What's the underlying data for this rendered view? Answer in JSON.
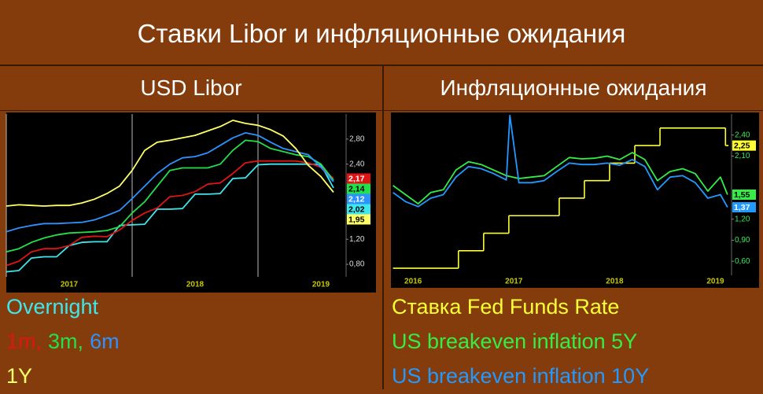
{
  "title": "Ставки Libor и инфляционные ожидания",
  "headings": [
    "USD Libor",
    "Инфляционные ожидания"
  ],
  "chart_data": [
    {
      "type": "line",
      "x": [
        2017.0,
        2017.1,
        2017.2,
        2017.3,
        2017.4,
        2017.5,
        2017.6,
        2017.7,
        2017.8,
        2017.9,
        2018.0,
        2018.1,
        2018.2,
        2018.3,
        2018.4,
        2018.5,
        2018.6,
        2018.7,
        2018.8,
        2018.9,
        2019.0,
        2019.1,
        2019.2,
        2019.3,
        2019.4,
        2019.5,
        2019.6
      ],
      "xlim": [
        2017.0,
        2019.7
      ],
      "xticks": [
        2017,
        2018,
        2019
      ],
      "ylim": [
        0.6,
        3.2
      ],
      "yticks": [
        {
          "value": 0.8,
          "label": "0,80"
        },
        {
          "value": 1.2,
          "label": "1,20"
        },
        {
          "value": 2.4,
          "label": "2,40"
        },
        {
          "value": 2.8,
          "label": "2,80"
        }
      ],
      "grid": true,
      "tick_color": "#dddddd",
      "series": [
        {
          "name": "Overnight",
          "color": "#3ee6ee",
          "end_label": "2,02",
          "values": [
            0.68,
            0.7,
            0.9,
            0.92,
            0.92,
            1.1,
            1.15,
            1.16,
            1.16,
            1.42,
            1.43,
            1.44,
            1.68,
            1.68,
            1.69,
            1.92,
            1.92,
            1.93,
            2.17,
            2.18,
            2.39,
            2.4,
            2.4,
            2.4,
            2.4,
            2.39,
            2.02
          ]
        },
        {
          "name": "1m",
          "color": "#e01414",
          "end_label": "2,17",
          "values": [
            0.78,
            0.85,
            1.0,
            1.05,
            1.05,
            1.1,
            1.23,
            1.25,
            1.24,
            1.35,
            1.5,
            1.62,
            1.7,
            1.88,
            1.9,
            1.96,
            2.08,
            2.1,
            2.25,
            2.42,
            2.45,
            2.45,
            2.45,
            2.45,
            2.42,
            2.35,
            2.17
          ]
        },
        {
          "name": "3m",
          "color": "#22e04a",
          "end_label": "2,14",
          "values": [
            1.0,
            1.05,
            1.15,
            1.22,
            1.27,
            1.3,
            1.31,
            1.32,
            1.34,
            1.4,
            1.62,
            1.8,
            2.05,
            2.3,
            2.34,
            2.34,
            2.34,
            2.4,
            2.62,
            2.78,
            2.76,
            2.65,
            2.6,
            2.55,
            2.52,
            2.4,
            2.14
          ]
        },
        {
          "name": "6m",
          "color": "#2b93ff",
          "end_label": "2,12",
          "values": [
            1.32,
            1.38,
            1.42,
            1.45,
            1.45,
            1.46,
            1.47,
            1.51,
            1.58,
            1.66,
            1.85,
            2.05,
            2.25,
            2.4,
            2.5,
            2.52,
            2.58,
            2.7,
            2.82,
            2.9,
            2.86,
            2.75,
            2.65,
            2.6,
            2.55,
            2.35,
            2.12
          ]
        },
        {
          "name": "1Y",
          "color": "#ffff66",
          "end_label": "1,95",
          "values": [
            1.73,
            1.75,
            1.74,
            1.73,
            1.74,
            1.74,
            1.78,
            1.84,
            1.93,
            2.05,
            2.3,
            2.62,
            2.75,
            2.78,
            2.82,
            2.86,
            2.93,
            3.0,
            3.1,
            3.05,
            3.02,
            2.95,
            2.85,
            2.65,
            2.38,
            2.2,
            1.95
          ]
        }
      ]
    },
    {
      "type": "line",
      "xlim": [
        2016.28,
        2019.66
      ],
      "xticks": [
        2016,
        2017,
        2018,
        2019
      ],
      "ylim": [
        0.4,
        2.7
      ],
      "yticks": [
        {
          "value": 0.6,
          "label": "0,60"
        },
        {
          "value": 0.9,
          "label": "0,90"
        },
        {
          "value": 1.2,
          "label": "1,20"
        },
        {
          "value": 2.1,
          "label": "2,10"
        },
        {
          "value": 2.4,
          "label": "2,40"
        }
      ],
      "grid": false,
      "tick_color": "#33ee55",
      "series": [
        {
          "name": "Ставка Fed Funds Rate",
          "color": "#ffff33",
          "step": true,
          "end_label": "2,25",
          "x": [
            2016.3,
            2016.95,
            2017.2,
            2017.45,
            2017.95,
            2018.2,
            2018.45,
            2018.7,
            2018.95,
            2019.6,
            2019.63
          ],
          "values": [
            0.5,
            0.75,
            1.0,
            1.25,
            1.5,
            1.75,
            2.0,
            2.25,
            2.5,
            2.25,
            2.25
          ]
        },
        {
          "name": "US breakeven inflation 5Y",
          "color": "#33ee44",
          "end_label": "1,55",
          "x": [
            2016.3,
            2016.425,
            2016.55,
            2016.675,
            2016.8,
            2016.925,
            2017.05,
            2017.175,
            2017.3,
            2017.425,
            2017.55,
            2017.675,
            2017.8,
            2017.925,
            2018.05,
            2018.175,
            2018.3,
            2018.425,
            2018.55,
            2018.675,
            2018.8,
            2018.925,
            2019.05,
            2019.175,
            2019.3,
            2019.425,
            2019.55,
            2019.62
          ],
          "values": [
            1.68,
            1.55,
            1.42,
            1.58,
            1.62,
            1.9,
            2.02,
            1.98,
            1.9,
            1.82,
            1.78,
            1.8,
            1.82,
            1.95,
            2.08,
            2.06,
            2.07,
            2.1,
            2.05,
            2.15,
            2.05,
            1.75,
            1.88,
            1.92,
            1.85,
            1.6,
            1.8,
            1.55
          ]
        },
        {
          "name": "US breakeven inflation 10Y",
          "color": "#2299ff",
          "end_label": "1,37",
          "x": [
            2016.3,
            2016.425,
            2016.55,
            2016.675,
            2016.8,
            2016.925,
            2017.05,
            2017.175,
            2017.3,
            2017.425,
            2017.46,
            2017.55,
            2017.675,
            2017.8,
            2017.925,
            2018.05,
            2018.175,
            2018.3,
            2018.425,
            2018.55,
            2018.675,
            2018.8,
            2018.925,
            2019.05,
            2019.175,
            2019.3,
            2019.425,
            2019.55,
            2019.62
          ],
          "values": [
            1.58,
            1.45,
            1.38,
            1.5,
            1.55,
            1.8,
            1.95,
            1.92,
            1.85,
            1.76,
            2.68,
            1.72,
            1.72,
            1.75,
            1.88,
            2.0,
            1.98,
            1.98,
            2.0,
            1.97,
            2.05,
            1.95,
            1.62,
            1.8,
            1.82,
            1.72,
            1.5,
            1.55,
            1.37
          ]
        }
      ]
    }
  ]
}
